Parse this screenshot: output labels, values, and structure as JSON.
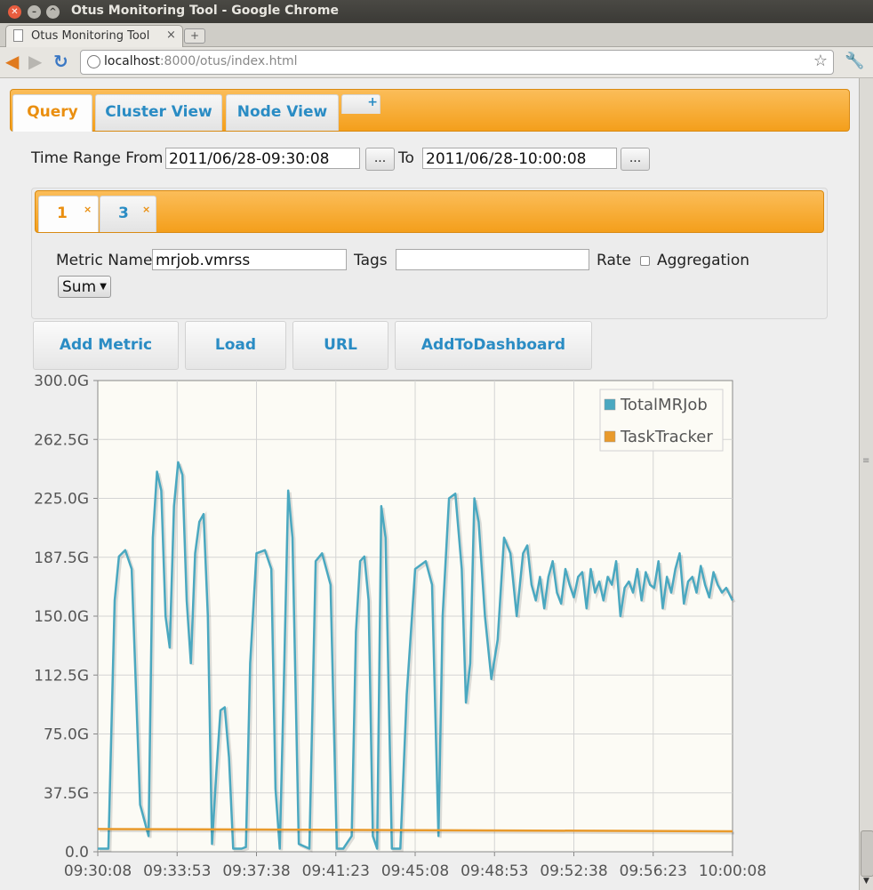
{
  "window": {
    "title": "Otus Monitoring Tool - Google Chrome"
  },
  "browser": {
    "tab_title": "Otus Monitoring Tool",
    "tab_close": "×",
    "new_tab": "+",
    "url_host": "localhost",
    "url_rest": ":8000/otus/index.html"
  },
  "main_tabs": [
    {
      "label": "Query"
    },
    {
      "label": "Cluster View"
    },
    {
      "label": "Node View"
    },
    {
      "label": "+"
    }
  ],
  "time_range": {
    "from_label": "Time Range From",
    "from_value": "2011/06/28-09:30:08",
    "picker_label": "...",
    "to_label": "To",
    "to_value": "2011/06/28-10:00:08"
  },
  "query_tabs": [
    {
      "label": "1",
      "close": "×"
    },
    {
      "label": "3",
      "close": "×"
    }
  ],
  "query_form": {
    "metric_name_label": "Metric Name",
    "metric_name_value": "mrjob.vmrss",
    "tags_label": "Tags",
    "tags_value": "",
    "rate_label": "Rate",
    "aggregation_label": "Aggregation",
    "aggregation_value": "Sum"
  },
  "actions": {
    "add_metric": "Add Metric",
    "load": "Load",
    "url": "URL",
    "add_to_dashboard": "AddToDashboard"
  },
  "colors": {
    "accent_orange": "#f6a623",
    "link_blue": "#2a8cc4",
    "series_total": "#4aa8c0",
    "series_tasktracker": "#e99a2b"
  },
  "chart_data": {
    "type": "line",
    "legend_position": "top-right",
    "grid": true,
    "ylim": [
      0,
      300
    ],
    "yticks": [
      "0.0",
      "37.5G",
      "75.0G",
      "112.5G",
      "150.0G",
      "187.5G",
      "225.0G",
      "262.5G",
      "300.0G"
    ],
    "xticks": [
      "09:30:08",
      "09:33:53",
      "09:37:38",
      "09:41:23",
      "09:45:08",
      "09:48:53",
      "09:52:38",
      "09:56:23",
      "10:00:08"
    ],
    "x_unit_note": "minutes",
    "series": [
      {
        "name": "TotalMRJob",
        "color": "#4aa8c0",
        "x": [
          0,
          0.5,
          0.8,
          1.0,
          1.3,
          1.6,
          2.0,
          2.4,
          2.6,
          2.8,
          3.0,
          3.2,
          3.4,
          3.6,
          3.8,
          4.0,
          4.2,
          4.4,
          4.6,
          4.8,
          5.0,
          5.2,
          5.4,
          5.6,
          5.8,
          6.0,
          6.2,
          6.4,
          6.8,
          7.0,
          7.2,
          7.5,
          7.9,
          8.2,
          8.4,
          8.6,
          8.8,
          9.0,
          9.2,
          9.5,
          10.0,
          10.3,
          10.6,
          11.0,
          11.3,
          11.6,
          12.0,
          12.2,
          12.4,
          12.6,
          12.8,
          13.0,
          13.2,
          13.4,
          13.6,
          13.9,
          14.3,
          14.6,
          15.0,
          15.5,
          15.8,
          16.1,
          16.3,
          16.6,
          16.9,
          17.2,
          17.4,
          17.6,
          17.8,
          18.0,
          18.3,
          18.6,
          18.9,
          19.2,
          19.5,
          19.8,
          20.1,
          20.3,
          20.5,
          20.7,
          20.9,
          21.1,
          21.3,
          21.5,
          21.7,
          21.9,
          22.1,
          22.3,
          22.5,
          22.7,
          22.9,
          23.1,
          23.3,
          23.5,
          23.7,
          23.9,
          24.1,
          24.3,
          24.5,
          24.7,
          24.9,
          25.1,
          25.3,
          25.5,
          25.7,
          25.9,
          26.1,
          26.3,
          26.5,
          26.7,
          26.9,
          27.1,
          27.3,
          27.5,
          27.7,
          27.9,
          28.1,
          28.3,
          28.5,
          28.7,
          28.9,
          29.1,
          29.3,
          29.5,
          29.7,
          30.0
        ],
        "values": [
          2,
          2,
          160,
          188,
          192,
          180,
          30,
          10,
          200,
          242,
          230,
          150,
          130,
          220,
          248,
          240,
          160,
          120,
          190,
          210,
          215,
          150,
          5,
          50,
          90,
          92,
          60,
          2,
          2,
          3,
          120,
          190,
          192,
          180,
          40,
          2,
          110,
          230,
          200,
          5,
          2,
          185,
          190,
          170,
          2,
          2,
          10,
          140,
          185,
          188,
          160,
          10,
          2,
          220,
          200,
          2,
          2,
          100,
          180,
          185,
          170,
          10,
          150,
          225,
          228,
          180,
          95,
          120,
          225,
          210,
          150,
          110,
          135,
          200,
          190,
          150,
          190,
          195,
          170,
          160,
          175,
          155,
          175,
          185,
          165,
          158,
          180,
          170,
          162,
          175,
          178,
          155,
          180,
          165,
          172,
          160,
          175,
          170,
          185,
          150,
          168,
          172,
          165,
          180,
          160,
          178,
          170,
          168,
          185,
          155,
          175,
          165,
          180,
          190,
          158,
          172,
          175,
          165,
          182,
          170,
          162,
          178,
          170,
          165,
          168,
          160
        ],
        "note": "approximate trace read from the plot"
      },
      {
        "name": "TaskTracker",
        "color": "#e99a2b",
        "x": [
          0,
          30
        ],
        "values": [
          14.5,
          13
        ]
      }
    ]
  }
}
